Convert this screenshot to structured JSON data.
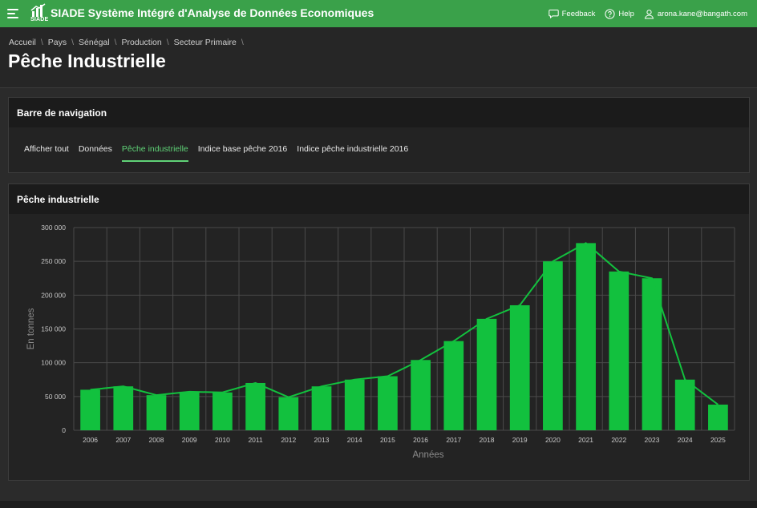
{
  "app": {
    "logo_text": "SIADE",
    "title": "SIADE Système Intégré d'Analyse de Données Economiques"
  },
  "topbar": {
    "feedback_label": "Feedback",
    "help_label": "Help",
    "user_email": "arona.kane@bangath.com",
    "menu_icon": "hamburger-icon",
    "feedback_icon": "chat-icon",
    "help_icon": "question-circle-icon",
    "user_icon": "user-icon"
  },
  "breadcrumb": [
    "Accueil",
    "Pays",
    "Sénégal",
    "Production",
    "Secteur Primaire"
  ],
  "page_title": "Pêche Industrielle",
  "nav_panel": {
    "title": "Barre de navigation",
    "tabs": [
      "Afficher tout",
      "Données",
      "Pêche industrielle",
      "Indice base pêche 2016",
      "Indice pêche industrielle 2016"
    ],
    "active_tab": "Pêche industrielle"
  },
  "chart_panel": {
    "title": "Pêche industrielle"
  },
  "colors": {
    "brand_green": "#3aa14a",
    "bar_green": "#12c13e",
    "active_tab": "#5fd277"
  },
  "chart_data": {
    "type": "bar",
    "categories": [
      "2006",
      "2007",
      "2008",
      "2009",
      "2010",
      "2011",
      "2012",
      "2013",
      "2014",
      "2015",
      "2016",
      "2017",
      "2018",
      "2019",
      "2020",
      "2021",
      "2022",
      "2023",
      "2024",
      "2025"
    ],
    "series": [
      {
        "type": "bar",
        "values": [
          60000,
          65000,
          52000,
          57000,
          56000,
          70000,
          49000,
          65000,
          75000,
          80000,
          104000,
          132000,
          165000,
          185000,
          250000,
          277000,
          235000,
          225000,
          75000,
          38000
        ]
      },
      {
        "type": "line",
        "values": [
          60000,
          65000,
          52000,
          57000,
          56000,
          70000,
          49000,
          65000,
          75000,
          80000,
          104000,
          132000,
          165000,
          185000,
          250000,
          277000,
          235000,
          225000,
          75000,
          38000
        ]
      }
    ],
    "xlabel": "Années",
    "ylabel": "En tonnes",
    "ylim": [
      0,
      300000
    ],
    "yticks": [
      "0",
      "50 000",
      "100 000",
      "150 000",
      "200 000",
      "250 000",
      "300 000"
    ],
    "grid": true,
    "legend": "none"
  }
}
